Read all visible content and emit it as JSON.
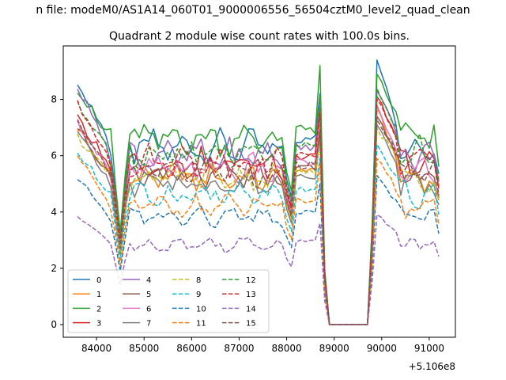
{
  "figure": {
    "suptitle": "n file: modeM0/AS1A14_060T01_9000006556_56504cztM0_level2_quad_clean"
  },
  "chart_data": {
    "type": "line",
    "title": "Quadrant 2 module wise count rates with 100.0s bins.",
    "xlabel": "",
    "ylabel": "",
    "x_offset_label": "+5.106e8",
    "xlim": [
      83300,
      91550
    ],
    "ylim": [
      -0.45,
      9.9
    ],
    "xticks": [
      84000,
      85000,
      86000,
      87000,
      88000,
      89000,
      90000,
      91000
    ],
    "yticks": [
      0,
      2,
      4,
      6,
      8
    ],
    "grid": false,
    "legend_placement": "lower-left",
    "legend_columns": 4,
    "series": [
      {
        "name": "0",
        "color": "#1f77b4",
        "dash": "solid",
        "level": 6.3,
        "start": 8.6,
        "peak1": 8.2,
        "peak2": 9.4
      },
      {
        "name": "1",
        "color": "#ff7f0e",
        "dash": "solid",
        "level": 5.2,
        "start": 7.0,
        "peak1": 7.0,
        "peak2": 7.7
      },
      {
        "name": "2",
        "color": "#2ca02c",
        "dash": "solid",
        "level": 6.6,
        "start": 8.4,
        "peak1": 9.2,
        "peak2": 8.9
      },
      {
        "name": "3",
        "color": "#d62728",
        "dash": "solid",
        "level": 5.7,
        "start": 7.3,
        "peak1": 7.7,
        "peak2": 8.1
      },
      {
        "name": "4",
        "color": "#9467bd",
        "dash": "solid",
        "level": 6.0,
        "start": 8.5,
        "peak1": 8.0,
        "peak2": 8.3
      },
      {
        "name": "5",
        "color": "#8c564b",
        "dash": "solid",
        "level": 5.3,
        "start": 7.0,
        "peak1": 6.9,
        "peak2": 7.4
      },
      {
        "name": "6",
        "color": "#e377c2",
        "dash": "solid",
        "level": 5.5,
        "start": 7.1,
        "peak1": 7.4,
        "peak2": 7.8
      },
      {
        "name": "7",
        "color": "#7f7f7f",
        "dash": "solid",
        "level": 5.0,
        "start": 6.8,
        "peak1": 6.6,
        "peak2": 7.1
      },
      {
        "name": "8",
        "color": "#bcbd22",
        "dash": "dashed",
        "level": 5.2,
        "start": 6.7,
        "peak1": 6.5,
        "peak2": 7.0
      },
      {
        "name": "9",
        "color": "#17becf",
        "dash": "dashed",
        "level": 4.6,
        "start": 6.1,
        "peak1": 5.9,
        "peak2": 6.4
      },
      {
        "name": "10",
        "color": "#1f77b4",
        "dash": "dashed",
        "level": 3.8,
        "start": 5.2,
        "peak1": 5.0,
        "peak2": 5.3
      },
      {
        "name": "11",
        "color": "#ff7f0e",
        "dash": "dashed",
        "level": 4.2,
        "start": 6.0,
        "peak1": 5.7,
        "peak2": 5.9
      },
      {
        "name": "12",
        "color": "#2ca02c",
        "dash": "dashed",
        "level": 6.1,
        "start": 7.9,
        "peak1": 8.1,
        "peak2": 8.4
      },
      {
        "name": "13",
        "color": "#d62728",
        "dash": "dashed",
        "level": 5.8,
        "start": 7.8,
        "peak1": 7.5,
        "peak2": 8.0
      },
      {
        "name": "14",
        "color": "#9467bd",
        "dash": "dashed",
        "level": 2.85,
        "start": 3.8,
        "peak1": 3.6,
        "peak2": 3.9
      },
      {
        "name": "15",
        "color": "#8c564b",
        "dash": "dashed",
        "level": 5.4,
        "start": 7.2,
        "peak1": 6.8,
        "peak2": 7.3
      }
    ]
  }
}
